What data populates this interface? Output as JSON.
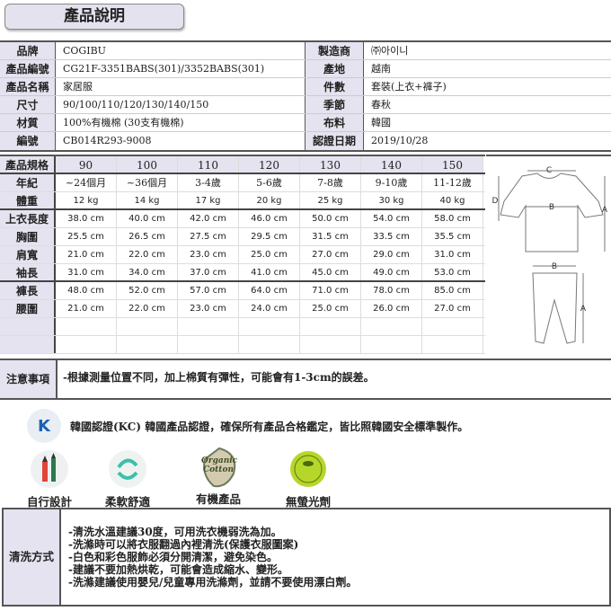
{
  "title": "產品說明",
  "info": [
    {
      "l1": "品牌",
      "v1": "COGIBU",
      "l2": "製造商",
      "v2": "㈜아이니"
    },
    {
      "l1": "產品編號",
      "v1": "CG21F-3351BABS(301)/3352BABS(301)",
      "l2": "產地",
      "v2": "越南"
    },
    {
      "l1": "產品名稱",
      "v1": "家居服",
      "l2": "件數",
      "v2": "套裝(上衣+褲子)"
    },
    {
      "l1": "尺寸",
      "v1": "90/100/110/120/130/140/150",
      "l2": "季節",
      "v2": "春秋"
    },
    {
      "l1": "材質",
      "v1": "100%有機棉 (30支有機棉)",
      "l2": "布料",
      "v2": "韓國"
    },
    {
      "l1": "編號",
      "v1": "CB014R293-9008",
      "l2": "認證日期",
      "v2": "2019/10/28"
    }
  ],
  "size_table": {
    "header_label": "產品規格",
    "sizes": [
      "90",
      "100",
      "110",
      "120",
      "130",
      "140",
      "150"
    ],
    "rows": [
      {
        "label": "年紀",
        "values": [
          "~24個月",
          "~36個月",
          "3-4歲",
          "5-6歲",
          "7-8歲",
          "9-10歲",
          "11-12歲"
        ]
      },
      {
        "label": "體重",
        "values": [
          "12 kg",
          "14 kg",
          "17 kg",
          "20 kg",
          "25 kg",
          "30 kg",
          "40 kg"
        ]
      },
      {
        "label": "上衣長度",
        "values": [
          "38.0 cm",
          "40.0 cm",
          "42.0 cm",
          "46.0 cm",
          "50.0 cm",
          "54.0 cm",
          "58.0 cm"
        ]
      },
      {
        "label": "胸圍",
        "values": [
          "25.5 cm",
          "26.5 cm",
          "27.5 cm",
          "29.5 cm",
          "31.5 cm",
          "33.5 cm",
          "35.5 cm"
        ]
      },
      {
        "label": "肩寬",
        "values": [
          "21.0 cm",
          "22.0 cm",
          "23.0 cm",
          "25.0 cm",
          "27.0 cm",
          "29.0 cm",
          "31.0 cm"
        ]
      },
      {
        "label": "袖長",
        "values": [
          "31.0 cm",
          "34.0 cm",
          "37.0 cm",
          "41.0 cm",
          "45.0 cm",
          "49.0 cm",
          "53.0 cm"
        ]
      },
      {
        "label": "褲長",
        "values": [
          "48.0 cm",
          "52.0 cm",
          "57.0 cm",
          "64.0 cm",
          "71.0 cm",
          "78.0 cm",
          "85.0 cm"
        ]
      },
      {
        "label": "腰圍",
        "values": [
          "21.0 cm",
          "22.0 cm",
          "23.0 cm",
          "24.0 cm",
          "25.0 cm",
          "26.0 cm",
          "27.0 cm"
        ]
      }
    ]
  },
  "diagram": {
    "top": {
      "c": "C",
      "b": "B",
      "d": "D",
      "a": "A"
    },
    "pants": {
      "b": "B",
      "a": "A"
    }
  },
  "notice": {
    "label": "注意事項",
    "text": "-根據測量位置不同，加上棉質有彈性，可能會有1-3cm的誤差。"
  },
  "kc": {
    "badge": "K",
    "text": "韓國認證(KC) 韓國產品認證，確保所有產品合格鑑定，皆比照韓國安全標準製作。"
  },
  "features": [
    {
      "label": "自行設計",
      "icon": "pencils-icon"
    },
    {
      "label": "柔軟舒適",
      "icon": "soft-swirl-icon"
    },
    {
      "label": "有機產品",
      "icon": "organic-cotton-leaf-icon",
      "icon_text": "Organic Cotton"
    },
    {
      "label": "無螢光劑",
      "icon": "no-fluorescent-badge-icon"
    }
  ],
  "wash": {
    "label": "清洗方式",
    "lines": [
      "-清洗水溫建議30度，可用洗衣機弱洗為加。",
      "-洗滌時可以將衣服翻過內裡清洗(保護衣服圖案)",
      "-白色和彩色服飾必須分開清潔，避免染色。",
      "-建議不要加熱烘乾，可能會造成縮水、變形。",
      "-洗滌建議使用嬰兒/兒童專用洗滌劑，並請不要使用漂白劑。"
    ]
  }
}
